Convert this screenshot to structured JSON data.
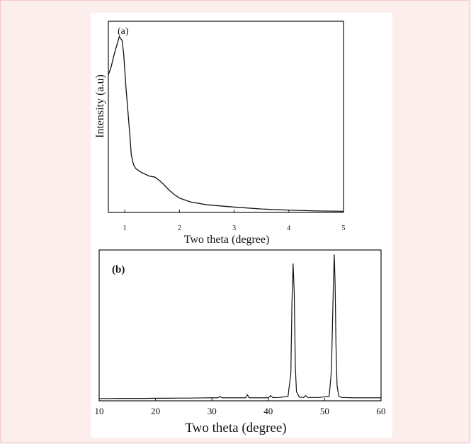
{
  "chart_data": [
    {
      "type": "line",
      "panel_label": "(a)",
      "xlabel": "Two theta (degree)",
      "ylabel": "Intensity (a.u)",
      "xlim": [
        0.7,
        5
      ],
      "ylim": [
        0,
        1
      ],
      "xticks": [
        1,
        2,
        3,
        4,
        5
      ],
      "y_ticks_shown": false,
      "series": [
        {
          "x": [
            0.7,
            0.75,
            0.8,
            0.85,
            0.9,
            0.95,
            0.98,
            1.02,
            1.08,
            1.12,
            1.16,
            1.2,
            1.3,
            1.45,
            1.55,
            1.62,
            1.7,
            1.8,
            1.9,
            2.0,
            2.2,
            2.5,
            3.0,
            3.5,
            4.0,
            4.5,
            5.0
          ],
          "y": [
            0.72,
            0.76,
            0.82,
            0.87,
            0.92,
            0.9,
            0.83,
            0.66,
            0.45,
            0.3,
            0.25,
            0.23,
            0.21,
            0.19,
            0.185,
            0.17,
            0.15,
            0.12,
            0.095,
            0.075,
            0.055,
            0.04,
            0.028,
            0.018,
            0.012,
            0.008,
            0.006
          ]
        }
      ],
      "line_color": "#111111"
    },
    {
      "type": "line",
      "panel_label": "(b)",
      "xlabel": "Two theta (degree)",
      "ylabel": "",
      "xlim": [
        10,
        60
      ],
      "ylim": [
        0,
        1
      ],
      "xticks": [
        10,
        20,
        30,
        40,
        50,
        60
      ],
      "y_ticks_shown": false,
      "series": [
        {
          "x": [
            10,
            12,
            14,
            16,
            18,
            20,
            22,
            24,
            26,
            28,
            30,
            31,
            31.4,
            31.8,
            34,
            36,
            36.3,
            36.6,
            38,
            40,
            40.4,
            40.8,
            42,
            43.5,
            44.0,
            44.2,
            44.4,
            44.6,
            44.8,
            45.0,
            45.5,
            46.3,
            46.6,
            47.0,
            49,
            50.8,
            51.2,
            51.5,
            51.7,
            51.85,
            52.0,
            52.2,
            52.5,
            53,
            55,
            58,
            60
          ],
          "y": [
            0.015,
            0.015,
            0.016,
            0.016,
            0.016,
            0.017,
            0.017,
            0.018,
            0.018,
            0.019,
            0.02,
            0.02,
            0.028,
            0.02,
            0.02,
            0.02,
            0.04,
            0.02,
            0.02,
            0.02,
            0.035,
            0.021,
            0.022,
            0.03,
            0.18,
            0.65,
            0.91,
            0.72,
            0.22,
            0.06,
            0.025,
            0.022,
            0.035,
            0.022,
            0.022,
            0.03,
            0.2,
            0.7,
            0.97,
            0.78,
            0.38,
            0.1,
            0.03,
            0.022,
            0.02,
            0.02,
            0.02
          ]
        }
      ],
      "line_color": "#111111"
    }
  ]
}
